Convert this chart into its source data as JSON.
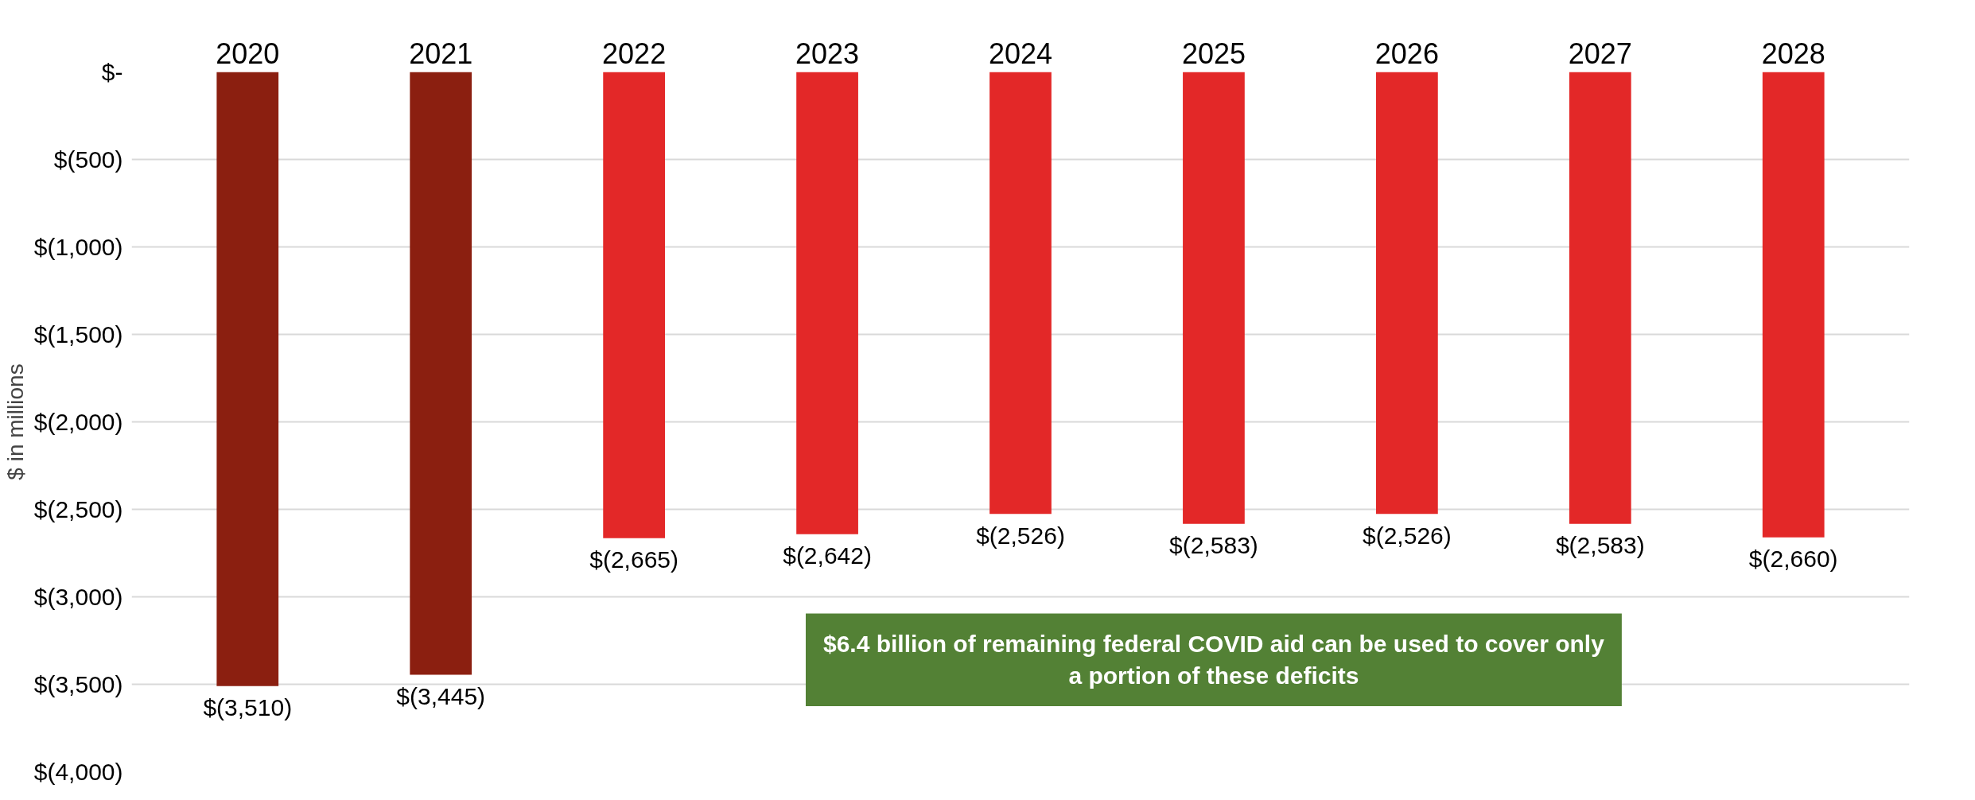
{
  "chart_data": {
    "type": "bar",
    "ylabel": "$ in millions",
    "categories": [
      "2020",
      "2021",
      "2022",
      "2023",
      "2024",
      "2025",
      "2026",
      "2027",
      "2028"
    ],
    "values": [
      -3510,
      -3445,
      -2665,
      -2642,
      -2526,
      -2583,
      -2526,
      -2583,
      -2660
    ],
    "colors": [
      "#8b1f10",
      "#8b1f10",
      "#e32828",
      "#e32828",
      "#e32828",
      "#e32828",
      "#e32828",
      "#e32828",
      "#e32828"
    ],
    "value_labels": [
      "$(3,510)",
      "$(3,445)",
      "$(2,665)",
      "$(2,642)",
      "$(2,526)",
      "$(2,583)",
      "$(2,526)",
      "$(2,583)",
      "$(2,660)"
    ],
    "ylim": [
      -4000,
      0
    ],
    "yticks": [
      {
        "value": 0,
        "label": "$-"
      },
      {
        "value": -500,
        "label": "$(500)"
      },
      {
        "value": -1000,
        "label": "$(1,000)"
      },
      {
        "value": -1500,
        "label": "$(1,500)"
      },
      {
        "value": -2000,
        "label": "$(2,000)"
      },
      {
        "value": -2500,
        "label": "$(2,500)"
      },
      {
        "value": -3000,
        "label": "$(3,000)"
      },
      {
        "value": -3500,
        "label": "$(3,500)"
      },
      {
        "value": -4000,
        "label": "$(4,000)"
      }
    ],
    "grid": "y",
    "annotations": [
      "$6.4 billion of remaining federal COVID aid can be used to cover only a portion of these deficits"
    ]
  }
}
